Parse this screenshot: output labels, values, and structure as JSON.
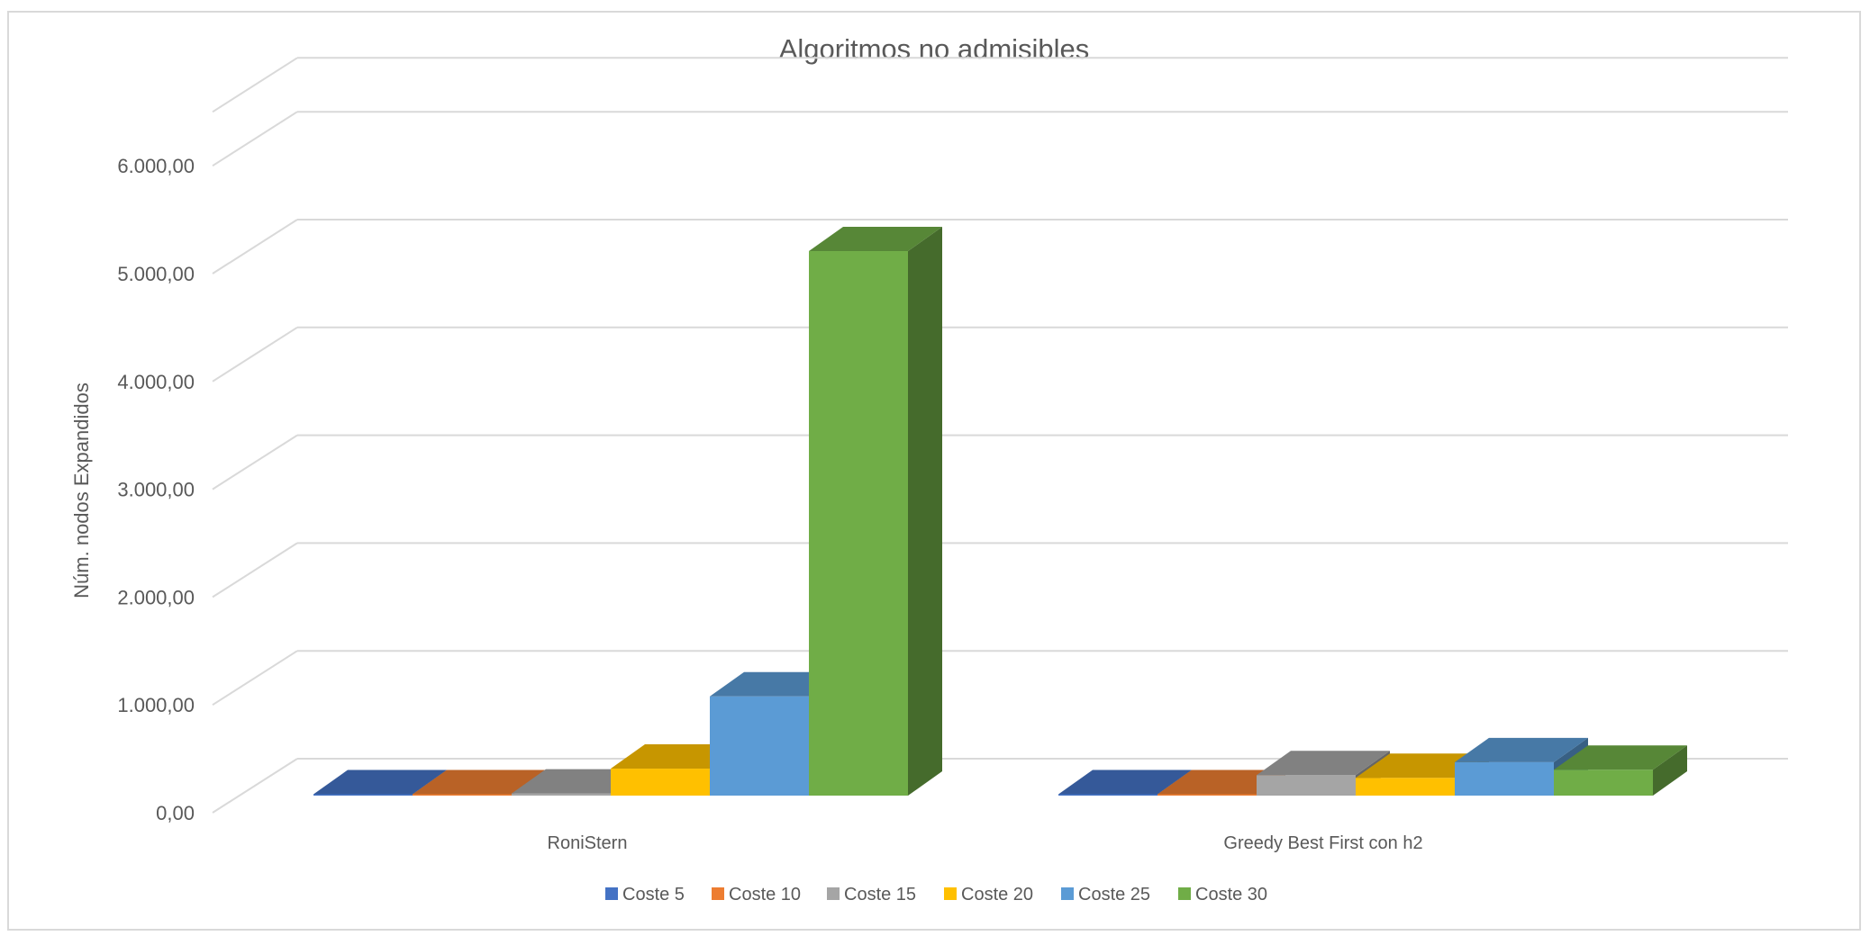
{
  "chart_data": {
    "type": "bar",
    "title": "Algoritmos no admisibles",
    "xlabel": "",
    "ylabel": "Núm. nodos Expandidos",
    "ylim": [
      0,
      6500
    ],
    "yticks": [
      0,
      1000,
      2000,
      3000,
      4000,
      5000,
      6000
    ],
    "ytick_labels": [
      "0,00",
      "1.000,00",
      "2.000,00",
      "3.000,00",
      "4.000,00",
      "5.000,00",
      "6.000,00"
    ],
    "categories": [
      "RoniStern",
      "Greedy Best First con h2"
    ],
    "series": [
      {
        "name": "Coste 5",
        "values": [
          5,
          5
        ],
        "color": "#4472c4"
      },
      {
        "name": "Coste 10",
        "values": [
          10,
          10
        ],
        "color": "#ed7d31"
      },
      {
        "name": "Coste 15",
        "values": [
          20,
          190
        ],
        "color": "#a5a5a5"
      },
      {
        "name": "Coste 20",
        "values": [
          250,
          165
        ],
        "color": "#ffc000"
      },
      {
        "name": "Coste 25",
        "values": [
          920,
          310
        ],
        "color": "#5b9bd5"
      },
      {
        "name": "Coste 30",
        "values": [
          5050,
          240
        ],
        "color": "#70ad47"
      }
    ],
    "grid": true,
    "legend": "bottom",
    "projection": "3d"
  }
}
